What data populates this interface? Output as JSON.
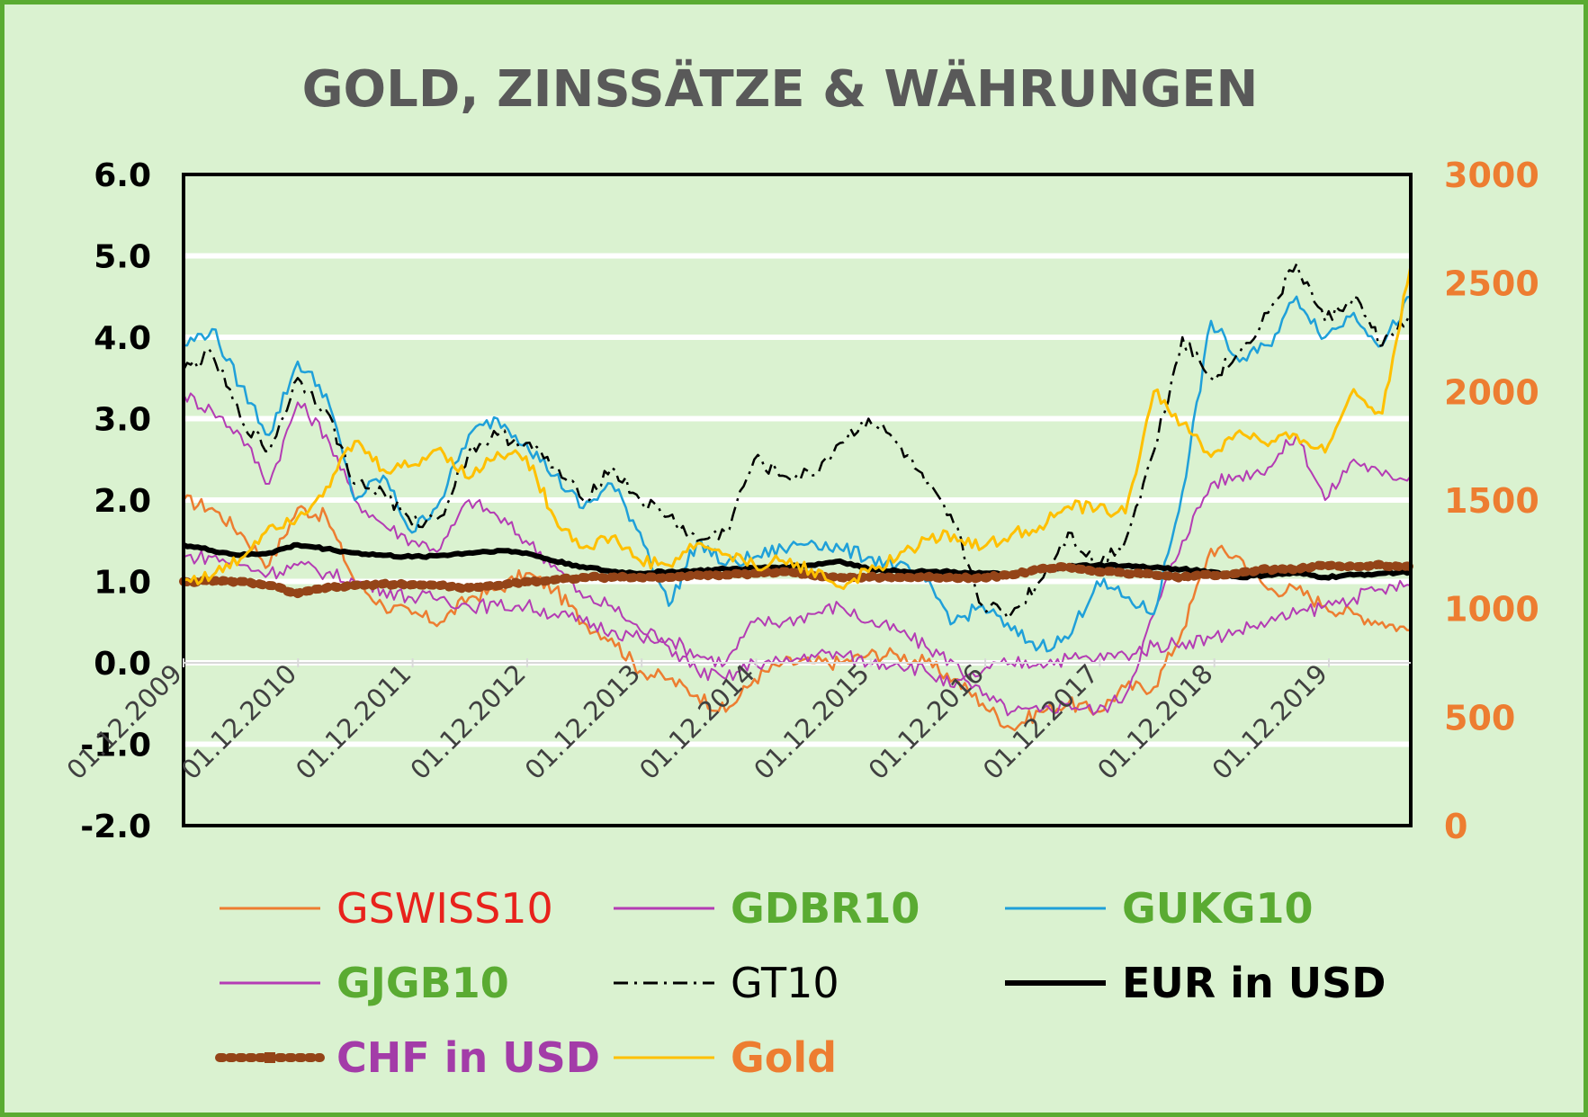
{
  "chart_data": {
    "type": "line",
    "title": "GOLD, ZINSSÄTZE & WÄHRUNGEN",
    "y_left": {
      "ylim": [
        -2.0,
        6.0
      ],
      "ticks": [
        "6.0",
        "5.0",
        "4.0",
        "3.0",
        "2.0",
        "1.0",
        "0.0",
        "-1.0",
        "-2.0"
      ],
      "tick_values": [
        6,
        5,
        4,
        3,
        2,
        1,
        0,
        -1,
        -2
      ]
    },
    "y_right": {
      "ylim": [
        0,
        3000
      ],
      "ticks": [
        "3000",
        "2500",
        "2000",
        "1500",
        "1000",
        "500",
        "0"
      ],
      "tick_values": [
        3000,
        2500,
        2000,
        1500,
        1000,
        500,
        0
      ]
    },
    "x_ticks": [
      "01.12.2009",
      "01.12.2010",
      "01.12.2011",
      "01.12.2012",
      "01.12.2013",
      "01.12.2014",
      "01.12.2015",
      "01.12.2016",
      "01.12.2017",
      "01.12.2018",
      "01.12.2019"
    ],
    "x_range": [
      "01.12.2009",
      "01.10.2020"
    ],
    "grid": "horizontal, white",
    "legend_position": "bottom",
    "x": [
      "01.12.2009",
      "01.03.2010",
      "01.06.2010",
      "01.09.2010",
      "01.12.2010",
      "01.03.2011",
      "01.06.2011",
      "01.09.2011",
      "01.12.2011",
      "01.03.2012",
      "01.06.2012",
      "01.09.2012",
      "01.12.2012",
      "01.03.2013",
      "01.06.2013",
      "01.09.2013",
      "01.12.2013",
      "01.03.2014",
      "01.06.2014",
      "01.09.2014",
      "01.12.2014",
      "01.03.2015",
      "01.06.2015",
      "01.09.2015",
      "01.12.2015",
      "01.03.2016",
      "01.06.2016",
      "01.09.2016",
      "01.12.2016",
      "01.03.2017",
      "01.06.2017",
      "01.09.2017",
      "01.12.2017",
      "01.03.2018",
      "01.06.2018",
      "01.09.2018",
      "01.12.2018",
      "01.03.2019",
      "01.06.2019",
      "01.09.2019",
      "01.12.2019",
      "01.03.2020",
      "01.06.2020",
      "01.10.2020"
    ],
    "series": [
      {
        "name": "GSWISS10",
        "axis": "left",
        "color": "#ed7d31",
        "style": "solid",
        "width": 2.5,
        "values": [
          2.0,
          1.9,
          1.6,
          1.2,
          1.9,
          1.8,
          1.0,
          0.7,
          0.6,
          0.5,
          0.8,
          0.9,
          1.1,
          0.9,
          0.5,
          0.3,
          -0.1,
          -0.2,
          -0.4,
          -0.6,
          -0.2,
          0.0,
          0.0,
          0.0,
          0.1,
          0.1,
          0.0,
          -0.2,
          -0.5,
          -0.8,
          -0.6,
          -0.5,
          -0.6,
          -0.3,
          -0.3,
          0.4,
          1.4,
          1.3,
          0.9,
          0.9,
          0.7,
          0.6,
          0.5,
          0.4
        ]
      },
      {
        "name": "GDBR10",
        "axis": "left",
        "color": "#b43cb4",
        "style": "solid",
        "width": 2,
        "values": [
          3.3,
          3.1,
          2.8,
          2.2,
          3.2,
          2.8,
          2.0,
          1.7,
          1.5,
          1.4,
          2.0,
          1.8,
          1.5,
          1.2,
          0.8,
          0.7,
          0.4,
          0.3,
          0.1,
          0.0,
          0.5,
          0.5,
          0.6,
          0.7,
          0.5,
          0.4,
          0.2,
          0.0,
          -0.4,
          -0.6,
          -0.6,
          -0.5,
          -0.6,
          -0.4,
          0.6,
          1.5,
          2.2,
          2.3,
          2.4,
          2.8,
          2.0,
          2.5,
          2.3,
          2.3
        ]
      },
      {
        "name": "GUKG10",
        "axis": "left",
        "color": "#1fa0d9",
        "style": "solid",
        "width": 2.5,
        "values": [
          3.9,
          4.1,
          3.4,
          2.8,
          3.7,
          3.3,
          2.0,
          2.3,
          1.6,
          2.0,
          2.8,
          3.0,
          2.7,
          2.3,
          1.9,
          2.2,
          1.6,
          0.7,
          1.5,
          1.2,
          1.3,
          1.4,
          1.5,
          1.4,
          1.3,
          1.2,
          1.0,
          0.5,
          0.7,
          0.4,
          0.2,
          0.3,
          1.0,
          0.8,
          0.6,
          2.1,
          4.2,
          3.7,
          3.9,
          4.5,
          4.0,
          4.3,
          3.9,
          4.5
        ]
      },
      {
        "name": "GJGB10",
        "axis": "left",
        "color": "#b43cb4",
        "style": "solid",
        "width": 2,
        "values": [
          1.3,
          1.3,
          1.2,
          1.1,
          1.2,
          1.1,
          1.0,
          0.9,
          0.8,
          0.8,
          0.7,
          0.7,
          0.7,
          0.6,
          0.5,
          0.4,
          0.3,
          0.2,
          -0.1,
          -0.2,
          0.0,
          0.0,
          0.1,
          0.1,
          0.0,
          0.0,
          -0.1,
          -0.3,
          -0.1,
          0.0,
          0.0,
          0.05,
          0.05,
          0.1,
          0.2,
          0.25,
          0.3,
          0.4,
          0.5,
          0.6,
          0.7,
          0.8,
          0.9,
          0.95
        ]
      },
      {
        "name": "GT10",
        "axis": "left",
        "color": "#000000",
        "style": "dashdot",
        "width": 2.5,
        "values": [
          3.6,
          3.8,
          3.0,
          2.6,
          3.5,
          3.1,
          2.2,
          2.1,
          1.7,
          1.8,
          2.6,
          2.8,
          2.7,
          2.4,
          2.0,
          2.4,
          2.0,
          1.8,
          1.5,
          1.6,
          2.5,
          2.3,
          2.3,
          2.7,
          3.0,
          2.7,
          2.2,
          1.7,
          0.7,
          0.6,
          1.0,
          1.6,
          1.2,
          1.5,
          2.6,
          4.0,
          3.5,
          3.8,
          4.3,
          4.9,
          4.2,
          4.5,
          3.9,
          4.3
        ]
      },
      {
        "name": "EUR in USD",
        "axis": "left",
        "color": "#000000",
        "style": "solid",
        "width": 6,
        "values": [
          1.45,
          1.38,
          1.32,
          1.35,
          1.45,
          1.4,
          1.35,
          1.32,
          1.3,
          1.32,
          1.35,
          1.38,
          1.35,
          1.25,
          1.18,
          1.12,
          1.1,
          1.12,
          1.13,
          1.15,
          1.16,
          1.18,
          1.2,
          1.25,
          1.15,
          1.13,
          1.12,
          1.12,
          1.1,
          1.08,
          1.15,
          1.18,
          1.2,
          1.19,
          1.17,
          1.15,
          1.12,
          1.05,
          1.08,
          1.1,
          1.05,
          1.08,
          1.1,
          1.12
        ]
      },
      {
        "name": "CHF in USD",
        "axis": "left",
        "color": "#944418",
        "style": "dotted",
        "width": 10,
        "values": [
          1.0,
          1.0,
          1.0,
          0.95,
          0.85,
          0.92,
          0.95,
          0.97,
          0.96,
          0.95,
          0.92,
          0.95,
          1.0,
          1.02,
          1.05,
          1.05,
          1.05,
          1.05,
          1.08,
          1.08,
          1.1,
          1.12,
          1.08,
          1.05,
          1.05,
          1.05,
          1.05,
          1.05,
          1.05,
          1.08,
          1.15,
          1.18,
          1.12,
          1.1,
          1.08,
          1.05,
          1.08,
          1.1,
          1.15,
          1.15,
          1.2,
          1.18,
          1.2,
          1.18
        ]
      },
      {
        "name": "Gold",
        "axis": "right",
        "color": "#ffc000",
        "style": "solid",
        "width": 3,
        "values": [
          1130,
          1150,
          1230,
          1380,
          1420,
          1560,
          1770,
          1640,
          1660,
          1740,
          1600,
          1720,
          1700,
          1420,
          1280,
          1330,
          1220,
          1200,
          1300,
          1250,
          1200,
          1220,
          1180,
          1100,
          1170,
          1230,
          1320,
          1340,
          1280,
          1340,
          1380,
          1470,
          1460,
          1440,
          2000,
          1850,
          1700,
          1820,
          1750,
          1800,
          1720,
          2010,
          1900,
          2580
        ]
      }
    ]
  },
  "legend": [
    {
      "label": "GSWISS10",
      "label_color": "#e8221c",
      "bold": false,
      "series": 0
    },
    {
      "label": "GDBR10",
      "label_color": "#5aab32",
      "bold": true,
      "series": 1
    },
    {
      "label": "GUKG10",
      "label_color": "#5aab32",
      "bold": true,
      "series": 2
    },
    {
      "label": "GJGB10",
      "label_color": "#5aab32",
      "bold": true,
      "series": 3
    },
    {
      "label": "GT10",
      "label_color": "#000000",
      "bold": false,
      "series": 4
    },
    {
      "label": "EUR in USD",
      "label_color": "#000000",
      "bold": true,
      "series": 5
    },
    {
      "label": "CHF in USD",
      "label_color": "#a33ca8",
      "bold": true,
      "series": 6
    },
    {
      "label": "Gold",
      "label_color": "#ed7d31",
      "bold": true,
      "series": 7
    }
  ],
  "colors": {
    "background": "#daf2d0",
    "border": "#5aab32",
    "grid": "#ffffff",
    "title": "#595959",
    "right_axis": "#ed7d31"
  }
}
